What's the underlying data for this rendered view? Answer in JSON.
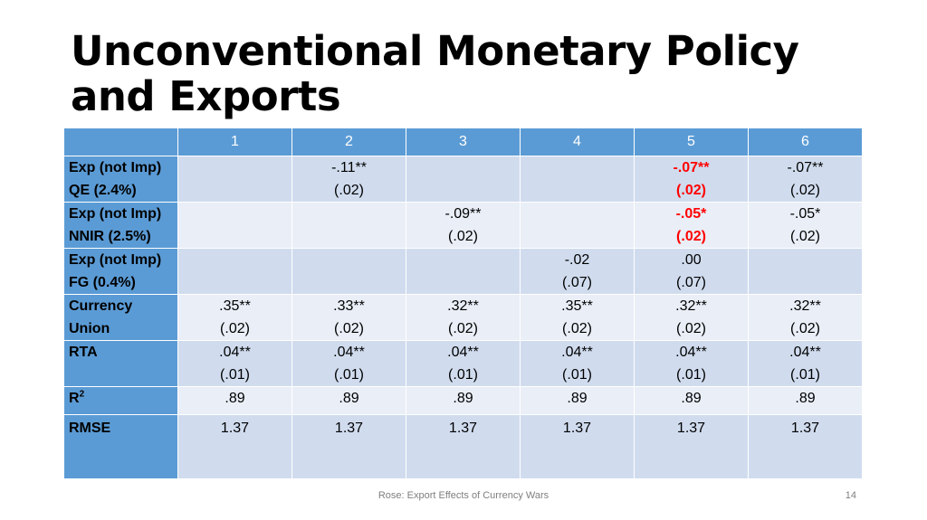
{
  "slide": {
    "title": "Unconventional Monetary Policy and Exports",
    "footer": "Rose: Export Effects of Currency Wars",
    "page_number": "14"
  },
  "table": {
    "columns": [
      "1",
      "2",
      "3",
      "4",
      "5",
      "6"
    ],
    "rows": [
      {
        "label_line1": "Exp (not Imp)",
        "label_line2": "QE (2.4%)",
        "cells": [
          {
            "coef": "",
            "se": ""
          },
          {
            "coef": "-.11**",
            "se": "(.02)"
          },
          {
            "coef": "",
            "se": ""
          },
          {
            "coef": "",
            "se": ""
          },
          {
            "coef": "-.07**",
            "se": "(.02)",
            "highlight": true
          },
          {
            "coef": "-.07**",
            "se": "(.02)"
          }
        ]
      },
      {
        "label_line1": "Exp (not Imp)",
        "label_line2": "NNIR (2.5%)",
        "cells": [
          {
            "coef": "",
            "se": ""
          },
          {
            "coef": "",
            "se": ""
          },
          {
            "coef": "-.09**",
            "se": "(.02)"
          },
          {
            "coef": "",
            "se": ""
          },
          {
            "coef": "-.05*",
            "se": "(.02)",
            "highlight": true
          },
          {
            "coef": "-.05*",
            "se": "(.02)"
          }
        ]
      },
      {
        "label_line1": "Exp (not Imp)",
        "label_line2": "FG (0.4%)",
        "cells": [
          {
            "coef": "",
            "se": ""
          },
          {
            "coef": "",
            "se": ""
          },
          {
            "coef": "",
            "se": ""
          },
          {
            "coef": "-.02",
            "se": "(.07)"
          },
          {
            "coef": ".00",
            "se": "(.07)"
          },
          {
            "coef": "",
            "se": ""
          }
        ]
      },
      {
        "label_line1": "Currency",
        "label_line2": "Union",
        "cells": [
          {
            "coef": ".35**",
            "se": "(.02)"
          },
          {
            "coef": ".33**",
            "se": "(.02)"
          },
          {
            "coef": ".32**",
            "se": "(.02)"
          },
          {
            "coef": ".35**",
            "se": "(.02)"
          },
          {
            "coef": ".32**",
            "se": "(.02)"
          },
          {
            "coef": ".32**",
            "se": "(.02)"
          }
        ]
      },
      {
        "label_line1": "RTA",
        "label_line2": "",
        "cells": [
          {
            "coef": ".04**",
            "se": "(.01)"
          },
          {
            "coef": ".04**",
            "se": "(.01)"
          },
          {
            "coef": ".04**",
            "se": "(.01)"
          },
          {
            "coef": ".04**",
            "se": "(.01)"
          },
          {
            "coef": ".04**",
            "se": "(.01)"
          },
          {
            "coef": ".04**",
            "se": "(.01)"
          }
        ]
      }
    ],
    "r2": {
      "label": "R",
      "label_sup": "2",
      "values": [
        ".89",
        ".89",
        ".89",
        ".89",
        ".89",
        ".89"
      ]
    },
    "rmse": {
      "label": "RMSE",
      "values": [
        "1.37",
        "1.37",
        "1.37",
        "1.37",
        "1.37",
        "1.37"
      ]
    }
  },
  "colors": {
    "header_blue": "#5b9bd5",
    "row_dark": "#d0dcee",
    "row_light": "#e9eef7",
    "highlight_red": "#ff0000"
  }
}
